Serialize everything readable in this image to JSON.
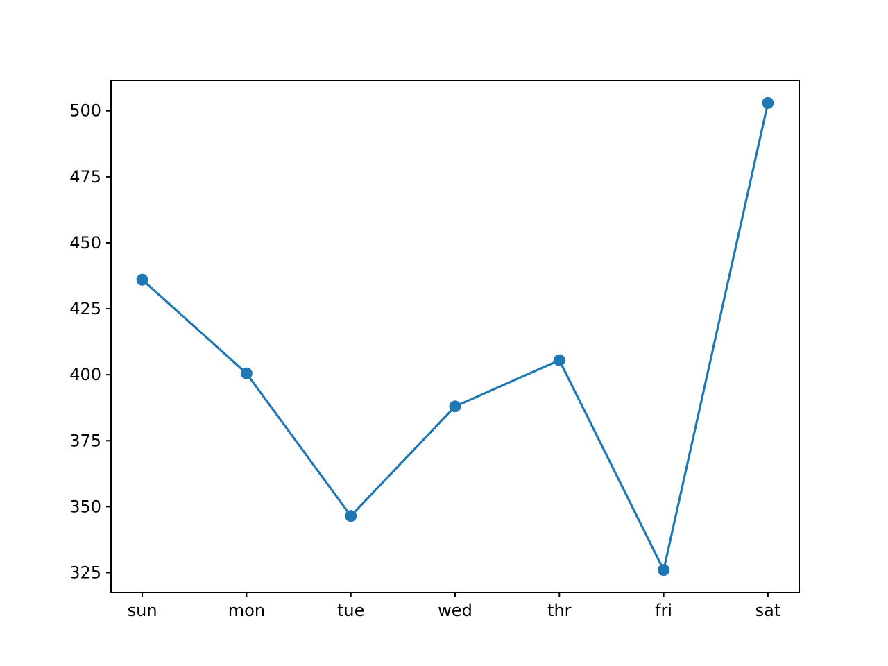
{
  "chart_data": {
    "type": "line",
    "title": "",
    "xlabel": "",
    "ylabel": "",
    "categories": [
      "sun",
      "mon",
      "tue",
      "wed",
      "thr",
      "fri",
      "sat"
    ],
    "series": [
      {
        "values": [
          436,
          400.5,
          346.5,
          388,
          405.5,
          326,
          503
        ],
        "color": "#1f77b4",
        "marker": "circle"
      }
    ],
    "ylim": [
      317.5,
      511.5
    ],
    "yticks": [
      325,
      350,
      375,
      400,
      425,
      450,
      475,
      500
    ],
    "grid": false,
    "legend": "none"
  }
}
